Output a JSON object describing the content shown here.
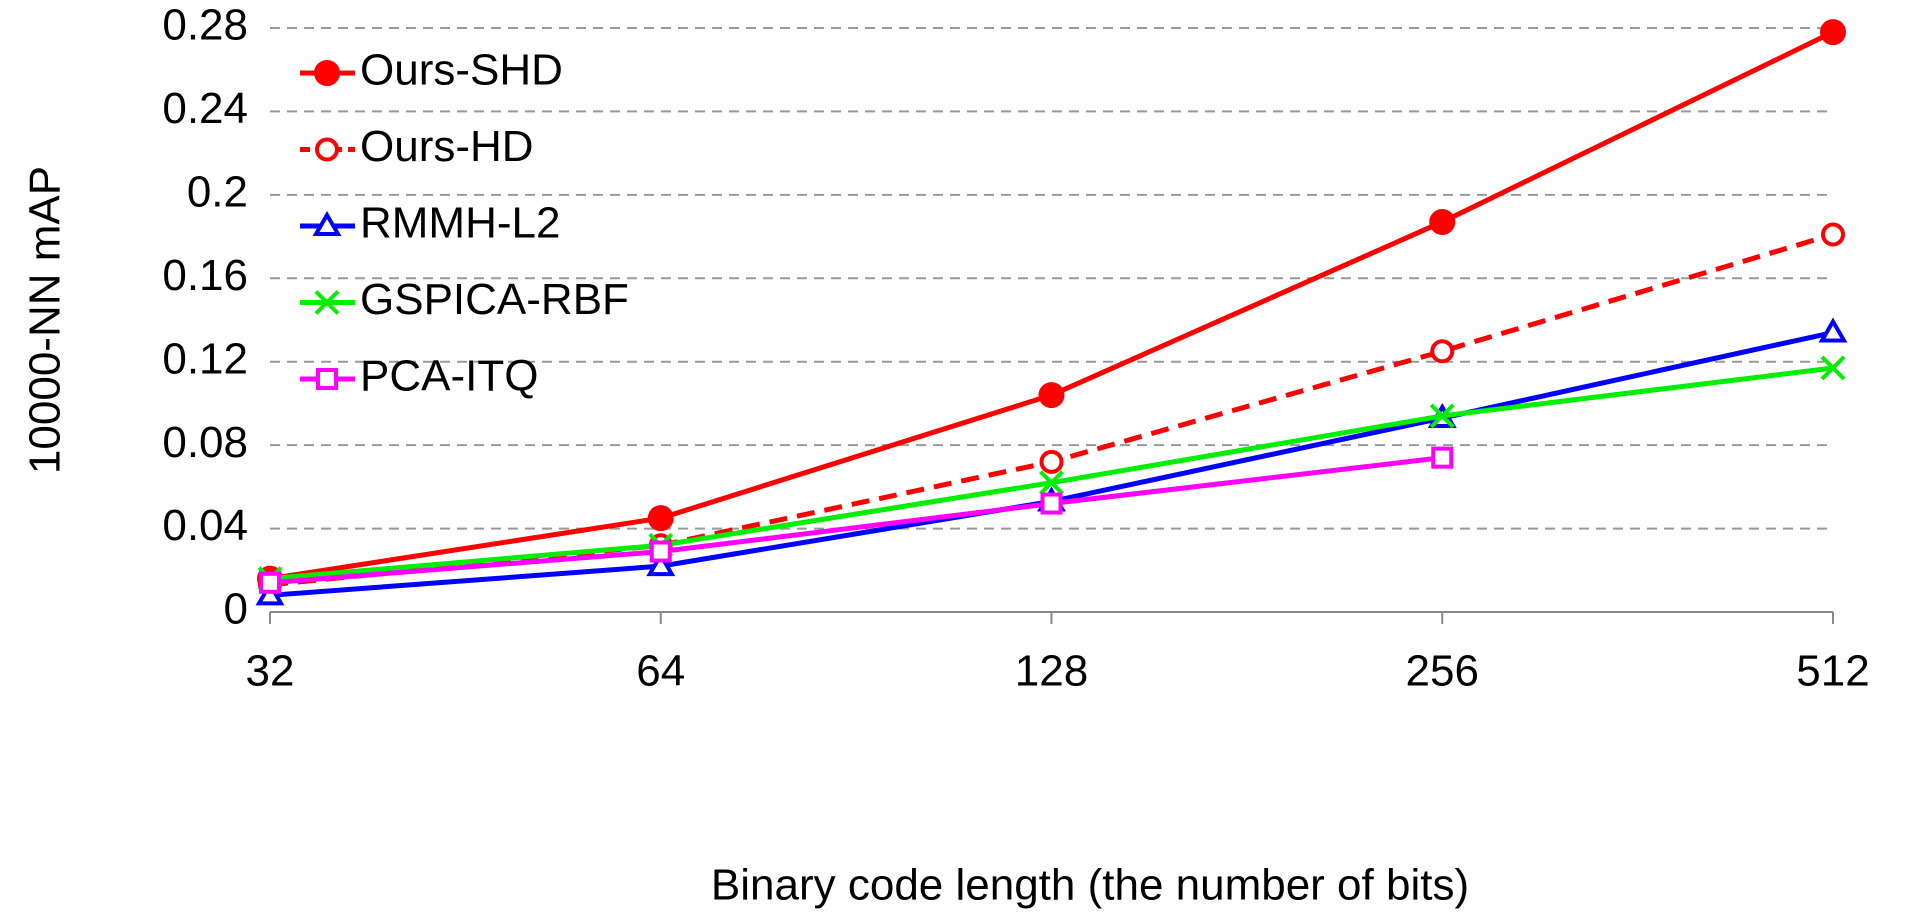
{
  "chart_data": {
    "type": "line",
    "xlabel": "Binary code length (the number of bits)",
    "ylabel": "10000-NN mAP",
    "categories": [
      "32",
      "64",
      "128",
      "256",
      "512"
    ],
    "ylim": [
      0,
      0.28
    ],
    "yticks": [
      0,
      0.04,
      0.08,
      0.12,
      0.16,
      0.2,
      0.24,
      0.28
    ],
    "grid": true,
    "legend": "upper left",
    "series": [
      {
        "name": "Ours-SHD",
        "color": "#ff0000",
        "marker": "filled-circle",
        "line_style": "solid",
        "values": [
          0.016,
          0.045,
          0.104,
          0.187,
          0.278
        ]
      },
      {
        "name": "Ours-HD",
        "color": "#ff0000",
        "marker": "open-circle",
        "line_style": "dashed",
        "values": [
          0.013,
          0.032,
          0.072,
          0.125,
          0.181
        ]
      },
      {
        "name": "RMMH-L2",
        "color": "#0000ff",
        "marker": "open-triangle",
        "line_style": "solid",
        "values": [
          0.008,
          0.022,
          0.053,
          0.093,
          0.134
        ]
      },
      {
        "name": "GSPICA-RBF",
        "color": "#00ee00",
        "marker": "cross",
        "line_style": "solid",
        "values": [
          0.016,
          0.032,
          0.062,
          0.094,
          0.117
        ]
      },
      {
        "name": "PCA-ITQ",
        "color": "#ff00ff",
        "marker": "open-square",
        "line_style": "solid",
        "values": [
          0.014,
          0.029,
          0.052,
          0.074,
          null
        ]
      }
    ]
  }
}
